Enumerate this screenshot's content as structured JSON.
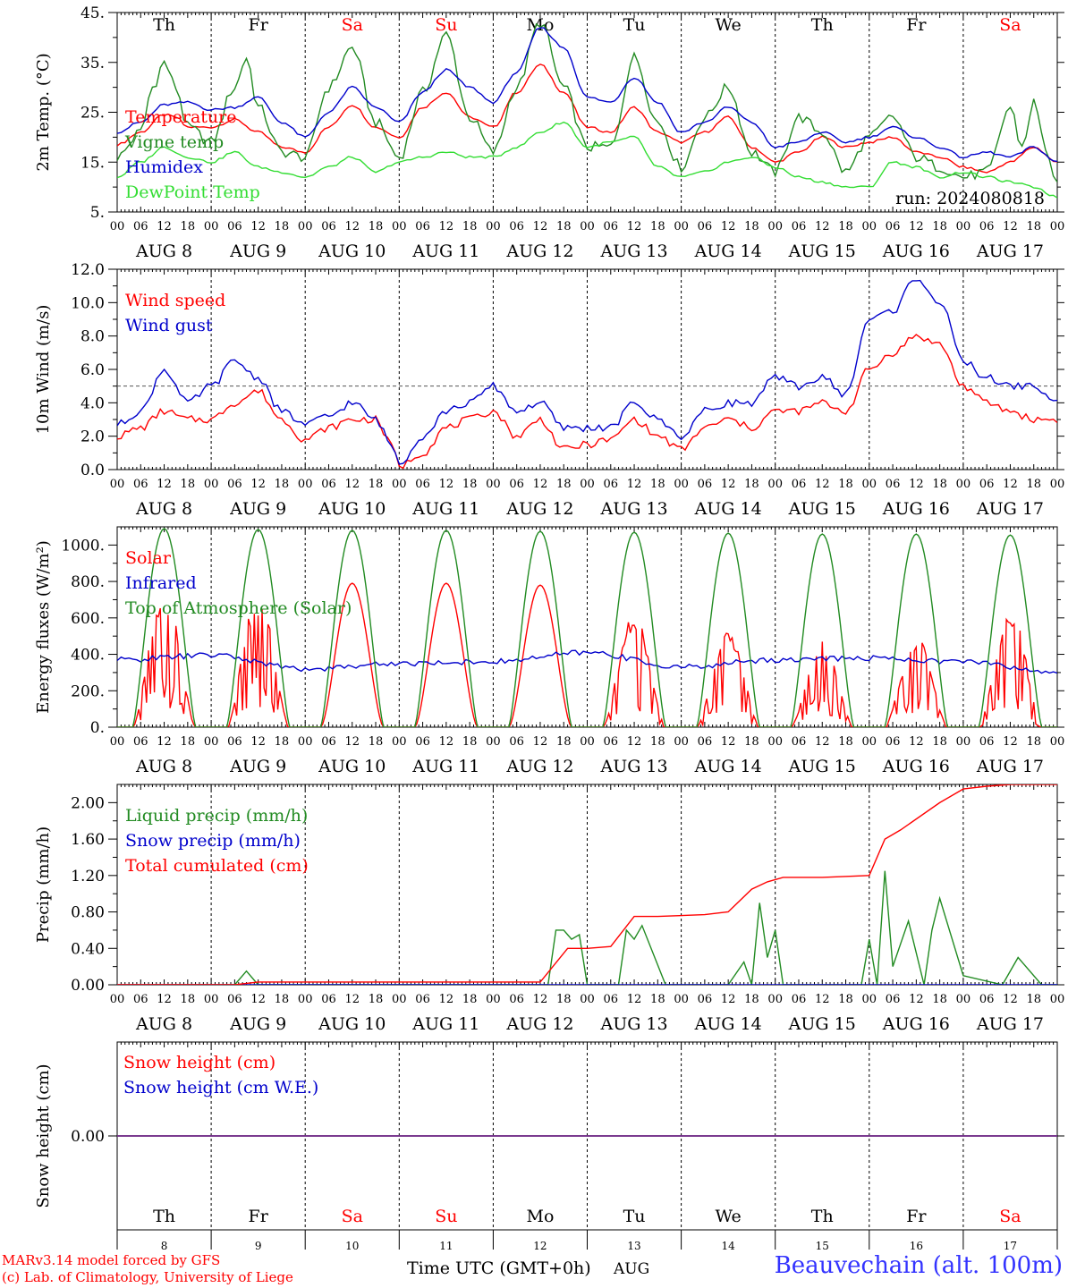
{
  "run_label": "run: 2024080818",
  "time_axis_label": "Time UTC (GMT+0h)",
  "month_label": "AUG",
  "station_label": "Beauvechain (alt. 100m)",
  "credits": [
    "MARv3.14 model forced by GFS",
    "(c) Lab. of Climatology, University of Liege"
  ],
  "hour_ticks": [
    "00",
    "06",
    "12",
    "18"
  ],
  "date_labels": [
    "AUG  8",
    "AUG  9",
    "AUG 10",
    "AUG 11",
    "AUG 12",
    "AUG 13",
    "AUG 14",
    "AUG 15",
    "AUG 16",
    "AUG 17"
  ],
  "day_numbers": [
    "8",
    "9",
    "10",
    "11",
    "12",
    "13",
    "14",
    "15",
    "16",
    "17"
  ],
  "weekdays": [
    {
      "label": "Th",
      "color": "#000000"
    },
    {
      "label": "Fr",
      "color": "#000000"
    },
    {
      "label": "Sa",
      "color": "#ff0000"
    },
    {
      "label": "Su",
      "color": "#ff0000"
    },
    {
      "label": "Mo",
      "color": "#000000"
    },
    {
      "label": "Tu",
      "color": "#000000"
    },
    {
      "label": "We",
      "color": "#000000"
    },
    {
      "label": "Th",
      "color": "#000000"
    },
    {
      "label": "Fr",
      "color": "#000000"
    },
    {
      "label": "Sa",
      "color": "#ff0000"
    }
  ],
  "chart_data": [
    {
      "type": "line",
      "ylabel": "2m Temp. (°C)",
      "ylim": [
        5,
        45
      ],
      "yticks": [
        "5.",
        "15.",
        "25.",
        "35.",
        "45."
      ],
      "x_unit": "hours since AUG 8 00 UTC",
      "series": [
        {
          "name": "Temperature",
          "color": "#ff0000",
          "x": [
            0,
            6,
            12,
            15,
            18,
            24,
            30,
            36,
            42,
            48,
            54,
            60,
            66,
            72,
            78,
            84,
            90,
            96,
            102,
            108,
            114,
            120,
            126,
            132,
            138,
            144,
            150,
            156,
            162,
            168,
            174,
            180,
            186,
            192,
            198,
            204,
            210,
            216,
            222,
            228,
            234,
            240
          ],
          "y": [
            18.5,
            21,
            24.5,
            24,
            22,
            22,
            23.5,
            21,
            18,
            17,
            22,
            26.5,
            22,
            20,
            26,
            29,
            24,
            22,
            29,
            34.5,
            29,
            22,
            21,
            26,
            21,
            19,
            21,
            24,
            18,
            15,
            17,
            20,
            18,
            19,
            20,
            17,
            16,
            14,
            13,
            15,
            18,
            15
          ]
        },
        {
          "name": "Vigne temp",
          "color": "#228b22",
          "x": [
            0,
            6,
            9,
            12,
            15,
            18,
            24,
            30,
            33,
            36,
            42,
            48,
            54,
            60,
            66,
            72,
            78,
            84,
            90,
            96,
            102,
            108,
            114,
            120,
            126,
            132,
            138,
            144,
            150,
            156,
            162,
            168,
            174,
            180,
            186,
            192,
            198,
            204,
            210,
            216,
            222,
            228,
            231,
            234,
            237,
            240
          ],
          "y": [
            16,
            21,
            30,
            35,
            30,
            22,
            19,
            30,
            36,
            26,
            17,
            16,
            30,
            38,
            23,
            16,
            29,
            40.5,
            24,
            17,
            30,
            43,
            30,
            18,
            18,
            36,
            23,
            14,
            24,
            30,
            17,
            13,
            24,
            21,
            13,
            20,
            24,
            16,
            14,
            12,
            13,
            26,
            18,
            27,
            18,
            10
          ]
        },
        {
          "name": "Humidex",
          "color": "#0000cc",
          "x": [
            0,
            6,
            12,
            18,
            24,
            30,
            36,
            42,
            48,
            54,
            60,
            66,
            72,
            78,
            84,
            90,
            96,
            102,
            108,
            114,
            120,
            126,
            132,
            138,
            144,
            150,
            156,
            162,
            168,
            174,
            180,
            186,
            192,
            198,
            204,
            210,
            216,
            222,
            228,
            234,
            240
          ],
          "y": [
            21,
            23,
            26.5,
            27,
            25.5,
            26,
            28,
            23,
            20,
            25,
            30,
            26,
            23,
            29,
            33.5,
            30,
            27,
            33,
            42,
            38,
            28,
            27,
            32,
            27,
            21,
            23,
            26,
            23,
            18,
            19,
            21,
            19,
            20,
            22,
            20,
            18,
            16,
            17,
            16,
            18,
            15
          ]
        },
        {
          "name": "DewPoint Temp",
          "color": "#33dd33",
          "x": [
            0,
            6,
            12,
            18,
            24,
            30,
            36,
            42,
            48,
            54,
            60,
            66,
            72,
            78,
            84,
            90,
            96,
            102,
            108,
            114,
            120,
            126,
            132,
            138,
            144,
            150,
            156,
            162,
            168,
            174,
            180,
            186,
            192,
            198,
            204,
            210,
            216,
            222,
            228,
            234,
            240
          ],
          "y": [
            12,
            15,
            18,
            16,
            15,
            17,
            14,
            13,
            12,
            14,
            16,
            13,
            15,
            16,
            17,
            16,
            16,
            18,
            21,
            23,
            18,
            19,
            20,
            14,
            12,
            13,
            15,
            16,
            14,
            12,
            11,
            10,
            10,
            15,
            14,
            12,
            13,
            12,
            11,
            10,
            8
          ]
        }
      ]
    },
    {
      "type": "line",
      "ylabel": "10m Wind (m/s)",
      "ylim": [
        0,
        12
      ],
      "yticks": [
        "0.0",
        "2.0",
        "4.0",
        "6.0",
        "8.0",
        "10.0",
        "12.0"
      ],
      "reference_line": 5,
      "x_unit": "hours since AUG 8 00 UTC",
      "series": [
        {
          "name": "Wind speed",
          "color": "#ff0000",
          "x": [
            0,
            6,
            12,
            18,
            24,
            30,
            36,
            42,
            48,
            54,
            60,
            66,
            70,
            72,
            78,
            84,
            90,
            96,
            102,
            108,
            114,
            120,
            126,
            132,
            138,
            144,
            150,
            156,
            162,
            168,
            174,
            180,
            186,
            192,
            198,
            204,
            210,
            216,
            222,
            228,
            234,
            240
          ],
          "y": [
            2,
            2.5,
            3.5,
            3,
            3,
            4,
            4.7,
            3,
            1.8,
            2.5,
            3,
            3,
            1.5,
            0.2,
            1,
            2.5,
            3,
            3.5,
            2,
            3,
            1.2,
            1.5,
            1.8,
            3,
            2,
            1.2,
            2.5,
            3,
            2.5,
            3.5,
            3.5,
            4,
            3.5,
            6,
            7,
            8,
            7.5,
            5,
            4,
            3.5,
            3,
            3
          ]
        },
        {
          "name": "Wind gust",
          "color": "#0000cc",
          "x": [
            0,
            6,
            12,
            18,
            24,
            30,
            36,
            42,
            48,
            54,
            60,
            66,
            70,
            72,
            78,
            84,
            90,
            96,
            102,
            108,
            114,
            120,
            126,
            132,
            138,
            144,
            150,
            156,
            162,
            168,
            174,
            180,
            186,
            192,
            198,
            204,
            210,
            216,
            222,
            228,
            234,
            240
          ],
          "y": [
            2.7,
            3.5,
            6,
            4,
            5,
            6.5,
            5.5,
            3.5,
            2.7,
            3.2,
            4,
            3,
            1.5,
            0.4,
            2,
            3.5,
            4,
            5,
            3.5,
            4,
            2.5,
            2.5,
            2.5,
            4,
            3,
            2,
            3.5,
            4,
            4,
            5.5,
            5,
            5.5,
            4.5,
            9,
            9.5,
            11.5,
            10,
            6.5,
            5.5,
            5,
            5,
            4
          ]
        }
      ]
    },
    {
      "type": "line",
      "ylabel": "Energy fluxes (W/m²)",
      "ylim": [
        0,
        1100
      ],
      "yticks": [
        "0.",
        "200.",
        "400.",
        "600.",
        "800.",
        "1000."
      ],
      "x_unit": "hours since AUG 8 00 UTC",
      "series": [
        {
          "name": "Solar",
          "color": "#ff0000",
          "day_peak_values": [
            750,
            730,
            790,
            790,
            780,
            620,
            540,
            470,
            500,
            650
          ]
        },
        {
          "name": "Infrared",
          "color": "#0000cc",
          "x": [
            0,
            24,
            48,
            72,
            96,
            120,
            144,
            168,
            192,
            216,
            240
          ],
          "y": [
            370,
            395,
            320,
            350,
            360,
            410,
            330,
            370,
            380,
            360,
            300
          ]
        },
        {
          "name": "Top of Atmosphere (Solar)",
          "color": "#228b22",
          "day_peak_values": [
            1090,
            1085,
            1080,
            1080,
            1075,
            1070,
            1065,
            1060,
            1060,
            1055
          ]
        }
      ]
    },
    {
      "type": "line",
      "ylabel": "Precip (mm/h)",
      "ylim": [
        0,
        2.2
      ],
      "yticks": [
        "0.00",
        "0.40",
        "0.80",
        "1.20",
        "1.60",
        "2.00"
      ],
      "x_unit": "hours since AUG 8 00 UTC",
      "series": [
        {
          "name": "Liquid precip (mm/h)",
          "color": "#228b22",
          "x": [
            0,
            30,
            33,
            36,
            110,
            112,
            114,
            116,
            118,
            120,
            128,
            130,
            132,
            134,
            140,
            156,
            160,
            162,
            164,
            166,
            168,
            170,
            190,
            192,
            194,
            196,
            198,
            202,
            206,
            208,
            210,
            216,
            226,
            230,
            236,
            240
          ],
          "y": [
            0,
            0,
            0.15,
            0,
            0,
            0.6,
            0.6,
            0.5,
            0.55,
            0,
            0,
            0.6,
            0.5,
            0.65,
            0,
            0,
            0.25,
            0,
            0.9,
            0.3,
            0.6,
            0,
            0,
            0.5,
            0,
            1.25,
            0.2,
            0.7,
            0,
            0.6,
            0.95,
            0.1,
            0,
            0.3,
            0,
            0
          ]
        },
        {
          "name": "Snow precip (mm/h)",
          "color": "#0000cc",
          "x": [
            0,
            240
          ],
          "y": [
            0,
            0
          ]
        },
        {
          "name": "Total cumulated (cm)",
          "color": "#ff0000",
          "x": [
            0,
            30,
            36,
            108,
            115,
            120,
            126,
            132,
            138,
            150,
            156,
            162,
            166,
            170,
            180,
            192,
            196,
            200,
            210,
            216,
            222,
            228,
            240
          ],
          "y": [
            0,
            0,
            0.03,
            0.03,
            0.4,
            0.4,
            0.42,
            0.75,
            0.75,
            0.77,
            0.8,
            1.05,
            1.13,
            1.18,
            1.18,
            1.2,
            1.6,
            1.7,
            2.0,
            2.15,
            2.18,
            2.2,
            2.2
          ]
        }
      ]
    },
    {
      "type": "line",
      "ylabel": "Snow height (cm)",
      "yticks": [
        "0.00"
      ],
      "x_unit": "hours since AUG 8 00 UTC",
      "series": [
        {
          "name": "Snow height (cm)",
          "color": "#ff0000",
          "x": [
            0,
            240
          ],
          "y": [
            0,
            0
          ]
        },
        {
          "name": "Snow height (cm W.E.)",
          "color": "#0000cc",
          "x": [
            0,
            240
          ],
          "y": [
            0,
            0
          ]
        }
      ]
    }
  ]
}
